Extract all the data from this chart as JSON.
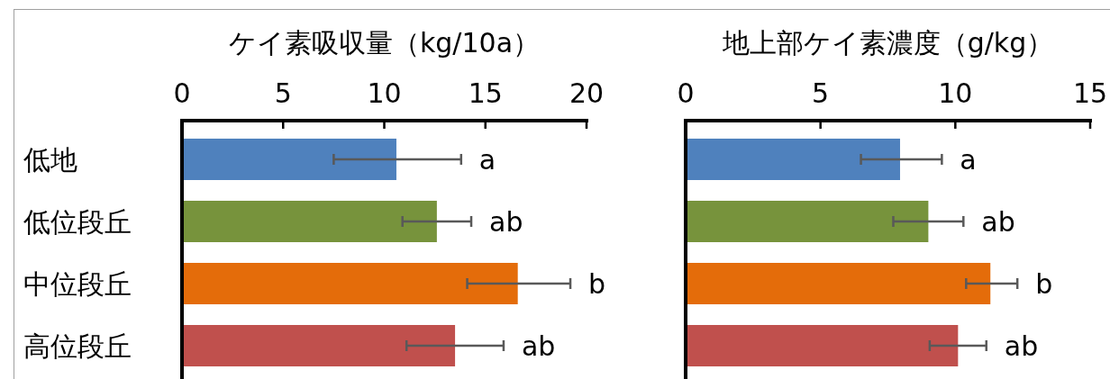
{
  "chart_data": [
    {
      "type": "bar",
      "orientation": "horizontal",
      "title": "ケイ素吸収量（kg/10a）",
      "categories": [
        "低地",
        "低位段丘",
        "中位段丘",
        "高位段丘"
      ],
      "values": [
        10.6,
        12.6,
        16.6,
        13.5
      ],
      "colors": [
        "#4f81bd",
        "#77933c",
        "#e46c0a",
        "#c0504d"
      ],
      "errors": [
        [
          7.5,
          13.8
        ],
        [
          10.9,
          14.3
        ],
        [
          14.1,
          19.2
        ],
        [
          11.1,
          15.9
        ]
      ],
      "xlim": [
        0,
        20
      ],
      "xticks": [
        0,
        5,
        10,
        15,
        20
      ],
      "grid": false,
      "annotations": [
        "a",
        "ab",
        "b",
        "ab"
      ]
    },
    {
      "type": "bar",
      "orientation": "horizontal",
      "title": "地上部ケイ素濃度（g/kg）",
      "categories": [
        null,
        null,
        null,
        null
      ],
      "values": [
        7.95,
        9.0,
        11.3,
        10.1
      ],
      "colors": [
        "#4f81bd",
        "#77933c",
        "#e46c0a",
        "#c0504d"
      ],
      "errors": [
        [
          6.5,
          9.5
        ],
        [
          7.7,
          10.3
        ],
        [
          10.4,
          12.3
        ],
        [
          9.05,
          11.15
        ]
      ],
      "xlim": [
        0,
        15
      ],
      "xticks": [
        0,
        5,
        10,
        15
      ],
      "grid": false,
      "tick_labels": "x",
      "annotations": [
        "a",
        "ab",
        "b",
        "ab"
      ]
    }
  ]
}
